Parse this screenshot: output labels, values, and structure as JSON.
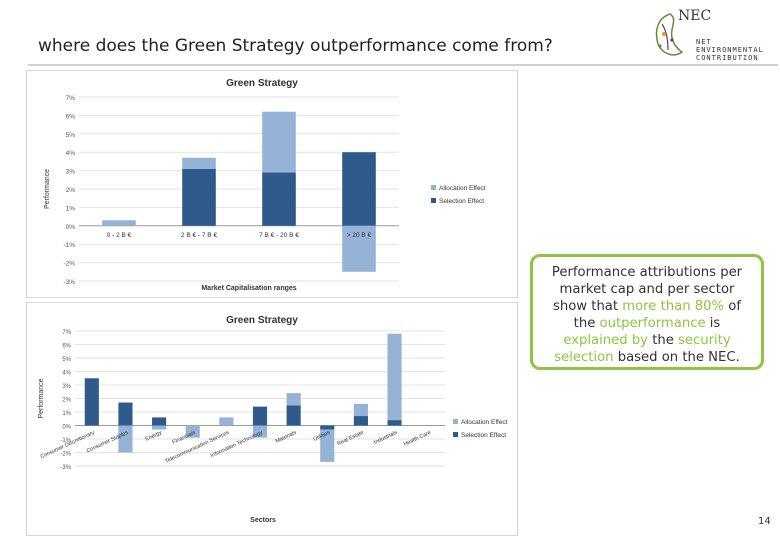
{
  "slide": {
    "title": "where does the Green Strategy outperformance come from?",
    "page_number": "14"
  },
  "logo": {
    "name": "NEC",
    "line1": "NET",
    "line2": "ENVIRONMENTAL",
    "line3": "CONTRIBUTION"
  },
  "callout": {
    "part1": "Performance attributions per market cap and per sector show that ",
    "hl1": "more than 80%",
    "part2": " of the ",
    "hl2": "outperformance",
    "part3": " is ",
    "hl3": "explained by",
    "part4": " the ",
    "hl4": "security selection",
    "part5": " based on the NEC."
  },
  "colors": {
    "allocation": "#95b3d7",
    "selection": "#2f5b8c",
    "highlight": "#8dc63f"
  },
  "chart_data": [
    {
      "type": "bar",
      "stacked": true,
      "title": "Green Strategy",
      "xlabel": "Market Capitalisation ranges",
      "ylabel": "Performance",
      "ylim": [
        -3,
        7
      ],
      "yticks": [
        "-3%",
        "-2%",
        "-1%",
        "0%",
        "1%",
        "2%",
        "3%",
        "4%",
        "5%",
        "6%",
        "7%"
      ],
      "categories": [
        "0 - 2 B €",
        "2 B € - 7 B €",
        "7 B € - 20 B €",
        "> 20 B €"
      ],
      "series": [
        {
          "name": "Allocation Effect",
          "values": [
            0.3,
            0.6,
            3.3,
            -2.5
          ]
        },
        {
          "name": "Selection Effect",
          "values": [
            0,
            3.1,
            2.9,
            4.0
          ]
        }
      ],
      "legend": "right",
      "grid": true
    },
    {
      "type": "bar",
      "stacked": true,
      "title": "Green Strategy",
      "xlabel": "Sectors",
      "ylabel": "Performance",
      "ylim": [
        -3,
        7
      ],
      "yticks": [
        "-3%",
        "-2%",
        "-1%",
        "0%",
        "1%",
        "2%",
        "3%",
        "4%",
        "5%",
        "6%",
        "7%"
      ],
      "categories": [
        "Consumer Discretionary",
        "Consumer Staples",
        "Energy",
        "Financials",
        "Telecommunication Services",
        "Information Technology",
        "Materials",
        "Utilities",
        "Real Estate",
        "Industrials",
        "Health Care"
      ],
      "series": [
        {
          "name": "Allocation Effect",
          "values": [
            0,
            -2.0,
            -0.3,
            -0.9,
            0.6,
            -0.9,
            0.9,
            -2.4,
            0.9,
            6.4,
            0
          ]
        },
        {
          "name": "Selection Effect",
          "values": [
            3.5,
            1.7,
            0.6,
            0,
            0,
            1.4,
            1.5,
            -0.3,
            0.7,
            0.4,
            0
          ]
        }
      ],
      "legend": "right",
      "grid": true
    }
  ]
}
